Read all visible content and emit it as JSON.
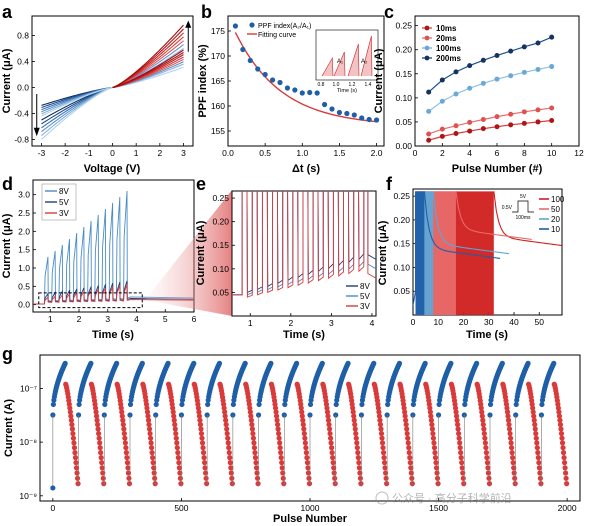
{
  "colors": {
    "red": "#d93a3a",
    "dark_red": "#b01515",
    "light_red": "#f0b0b0",
    "blue": "#1f5fa8",
    "mid_blue": "#4a8cc8",
    "light_blue": "#8fc0e6",
    "pale_blue": "#c6e0f2",
    "navy": "#14345f",
    "pink_fade": "#f3c8c8"
  },
  "chart_data": [
    {
      "id": "a",
      "type": "line",
      "panel_label": "a",
      "xlabel": "Voltage (V)",
      "ylabel": "Current (μA)",
      "xlim": [
        -3.4,
        3.4
      ],
      "ylim": [
        -0.9,
        1.1
      ],
      "xticks": [
        -3,
        -2,
        -1,
        0,
        1,
        2,
        3
      ],
      "xtick_labels": [
        "-3",
        "-2",
        "-1",
        "0",
        "1",
        "2",
        "3"
      ],
      "yticks": [
        -0.8,
        -0.4,
        0.0,
        0.4,
        0.8
      ],
      "ytick_labels": [
        "-0.8",
        "-0.4",
        "0.0",
        "0.4",
        "0.8"
      ],
      "loops_positive_max": [
        0.52,
        0.6,
        0.66,
        0.72,
        0.78,
        0.84,
        0.9,
        0.96
      ],
      "loops_negative_min": [
        -0.5,
        -0.56,
        -0.62,
        -0.68,
        -0.74,
        -0.8
      ],
      "annotations": [
        "arrow-up-at-positive-end",
        "arrow-down-at-negative-end"
      ]
    },
    {
      "id": "b",
      "type": "scatter",
      "panel_label": "b",
      "xlabel": "Δt (s)",
      "ylabel": "PPF index (%)",
      "xlim": [
        0,
        2.1
      ],
      "ylim": [
        152,
        178
      ],
      "xticks": [
        0.0,
        0.5,
        1.0,
        1.5,
        2.0
      ],
      "xtick_labels": [
        "0.0",
        "0.5",
        "1.0",
        "1.5",
        "2.0"
      ],
      "yticks": [
        155,
        160,
        165,
        170,
        175
      ],
      "ytick_labels": [
        "155",
        "160",
        "165",
        "170",
        "175"
      ],
      "x": [
        0.1,
        0.2,
        0.3,
        0.4,
        0.5,
        0.6,
        0.7,
        0.8,
        0.9,
        1.0,
        1.1,
        1.2,
        1.3,
        1.4,
        1.5,
        1.6,
        1.7,
        1.8,
        1.9,
        2.0
      ],
      "y": [
        176.0,
        171.3,
        169.1,
        167.4,
        166.3,
        165.2,
        164.7,
        163.6,
        163.2,
        162.6,
        162.7,
        162.6,
        160.3,
        159.4,
        158.7,
        158.5,
        158.2,
        157.6,
        157.3,
        157.2
      ],
      "fit": {
        "a": 156.0,
        "b": 22.0,
        "tau": 0.62
      },
      "legend": [
        "PPF index(A₂/A₁)",
        "Fitting curve"
      ],
      "inset": {
        "xlabel": "Time (s)",
        "xtick_labels": [
          "0.8",
          "1.0",
          "1.2",
          "1.4"
        ],
        "labels": [
          "A₁",
          "A₂"
        ]
      }
    },
    {
      "id": "c",
      "type": "line",
      "panel_label": "c",
      "xlabel": "Pulse Number (#)",
      "ylabel": "Current (μA)",
      "xlim": [
        0,
        12
      ],
      "ylim": [
        0,
        0.27
      ],
      "xticks": [
        0,
        2,
        4,
        6,
        8,
        10,
        12
      ],
      "xtick_labels": [
        "0",
        "2",
        "4",
        "6",
        "8",
        "10",
        "12"
      ],
      "yticks": [
        0.0,
        0.05,
        0.1,
        0.15,
        0.2,
        0.25
      ],
      "ytick_labels": [
        "0.00",
        "0.05",
        "0.10",
        "0.15",
        "0.20",
        "0.25"
      ],
      "categories": [
        1,
        2,
        3,
        4,
        5,
        6,
        7,
        8,
        9,
        10
      ],
      "series": [
        {
          "name": "10ms",
          "values": [
            0.012,
            0.02,
            0.026,
            0.031,
            0.036,
            0.04,
            0.044,
            0.047,
            0.05,
            0.053
          ]
        },
        {
          "name": "20ms",
          "values": [
            0.025,
            0.035,
            0.042,
            0.049,
            0.055,
            0.061,
            0.066,
            0.071,
            0.075,
            0.079
          ]
        },
        {
          "name": "100ms",
          "values": [
            0.072,
            0.093,
            0.108,
            0.12,
            0.13,
            0.139,
            0.146,
            0.153,
            0.159,
            0.165
          ]
        },
        {
          "name": "200ms",
          "values": [
            0.112,
            0.137,
            0.154,
            0.167,
            0.178,
            0.188,
            0.197,
            0.206,
            0.214,
            0.226
          ]
        }
      ]
    },
    {
      "id": "d",
      "type": "line",
      "panel_label": "d",
      "xlabel": "Time (s)",
      "ylabel": "Current (μA)",
      "xlim": [
        0.4,
        6.0
      ],
      "ylim": [
        -0.2,
        3.4
      ],
      "xticks": [
        1,
        2,
        3,
        4,
        5,
        6
      ],
      "xtick_labels": [
        "1",
        "2",
        "3",
        "4",
        "5",
        "6"
      ],
      "yticks": [
        0.0,
        0.5,
        1.0,
        1.5,
        2.0,
        2.5,
        3.0
      ],
      "ytick_labels": [
        "0.0",
        "0.5",
        "1.0",
        "1.5",
        "2.0",
        "2.5",
        "3.0"
      ],
      "pulse_start": 0.8,
      "pulse_period": 0.25,
      "pulse_count": 12,
      "series": [
        {
          "name": "8V",
          "peak_first": 1.3,
          "peak_last": 3.1,
          "baseline": 0.15
        },
        {
          "name": "5V",
          "peak_first": 0.3,
          "peak_last": 0.65,
          "baseline": 0.12
        },
        {
          "name": "3V",
          "peak_first": 0.2,
          "peak_last": 0.55,
          "baseline": 0.1
        }
      ]
    },
    {
      "id": "e",
      "type": "line",
      "panel_label": "e",
      "xlabel": "Time (s)",
      "ylabel": "Current (μA)",
      "xlim": [
        0.55,
        4.1
      ],
      "ylim": [
        0,
        0.265
      ],
      "xticks": [
        1,
        2,
        3,
        4
      ],
      "xtick_labels": [
        "1",
        "2",
        "3",
        "4"
      ],
      "yticks": [
        0.05,
        0.1,
        0.15,
        0.2,
        0.25
      ],
      "ytick_labels": [
        "0.05",
        "0.10",
        "0.15",
        "0.20",
        "0.25"
      ],
      "series": [
        {
          "name": "8V",
          "valley_first": 0.05,
          "valley_last": 0.12
        },
        {
          "name": "5V",
          "valley_first": 0.045,
          "valley_last": 0.105
        },
        {
          "name": "3V",
          "valley_first": 0.04,
          "valley_last": 0.095
        }
      ]
    },
    {
      "id": "f",
      "type": "area",
      "panel_label": "f",
      "xlabel": "Time (s)",
      "ylabel": "Current (μA)",
      "xlim": [
        0,
        59
      ],
      "ylim": [
        0,
        0.265
      ],
      "xticks": [
        0,
        10,
        20,
        30,
        40,
        50
      ],
      "xtick_labels": [
        "0",
        "10",
        "20",
        "30",
        "40",
        "50"
      ],
      "yticks": [
        0.05,
        0.1,
        0.15,
        0.2,
        0.25
      ],
      "ytick_labels": [
        "0.05",
        "0.10",
        "0.15",
        "0.20",
        "0.25"
      ],
      "series": [
        {
          "name": "100",
          "end_time": 32,
          "peak": 0.26,
          "decay_to": 0.165
        },
        {
          "name": "50",
          "end_time": 17,
          "peak": 0.26,
          "decay_to": 0.18
        },
        {
          "name": "20",
          "end_time": 8,
          "peak": 0.26,
          "decay_to": 0.15
        },
        {
          "name": "10",
          "end_time": 4.5,
          "peak": 0.26,
          "decay_to": 0.14
        }
      ],
      "inset": {
        "labels": [
          "5V",
          "0.5V",
          "100ms"
        ]
      }
    },
    {
      "id": "g",
      "type": "scatter",
      "panel_label": "g",
      "xlabel": "Pulse Number",
      "ylabel": "Current (A)",
      "yscale": "log",
      "xlim": [
        -50,
        2050
      ],
      "ylim": [
        8e-10,
        4.2e-07
      ],
      "xticks": [
        0,
        500,
        1000,
        1500,
        2000
      ],
      "xtick_labels": [
        "0",
        "500",
        "1000",
        "1500",
        "2000"
      ],
      "ytick_labels": [
        "10⁻⁹",
        "10⁻⁸",
        "10⁻⁷"
      ],
      "cycles": 20,
      "points_per_cycle": 100,
      "potentiation": {
        "start": 3.2e-08,
        "end": 3e-07
      },
      "depression": {
        "start": 1.2e-07,
        "end": 1.5e-09
      }
    }
  ],
  "watermark": "公众号 · 高分子科学前沿"
}
